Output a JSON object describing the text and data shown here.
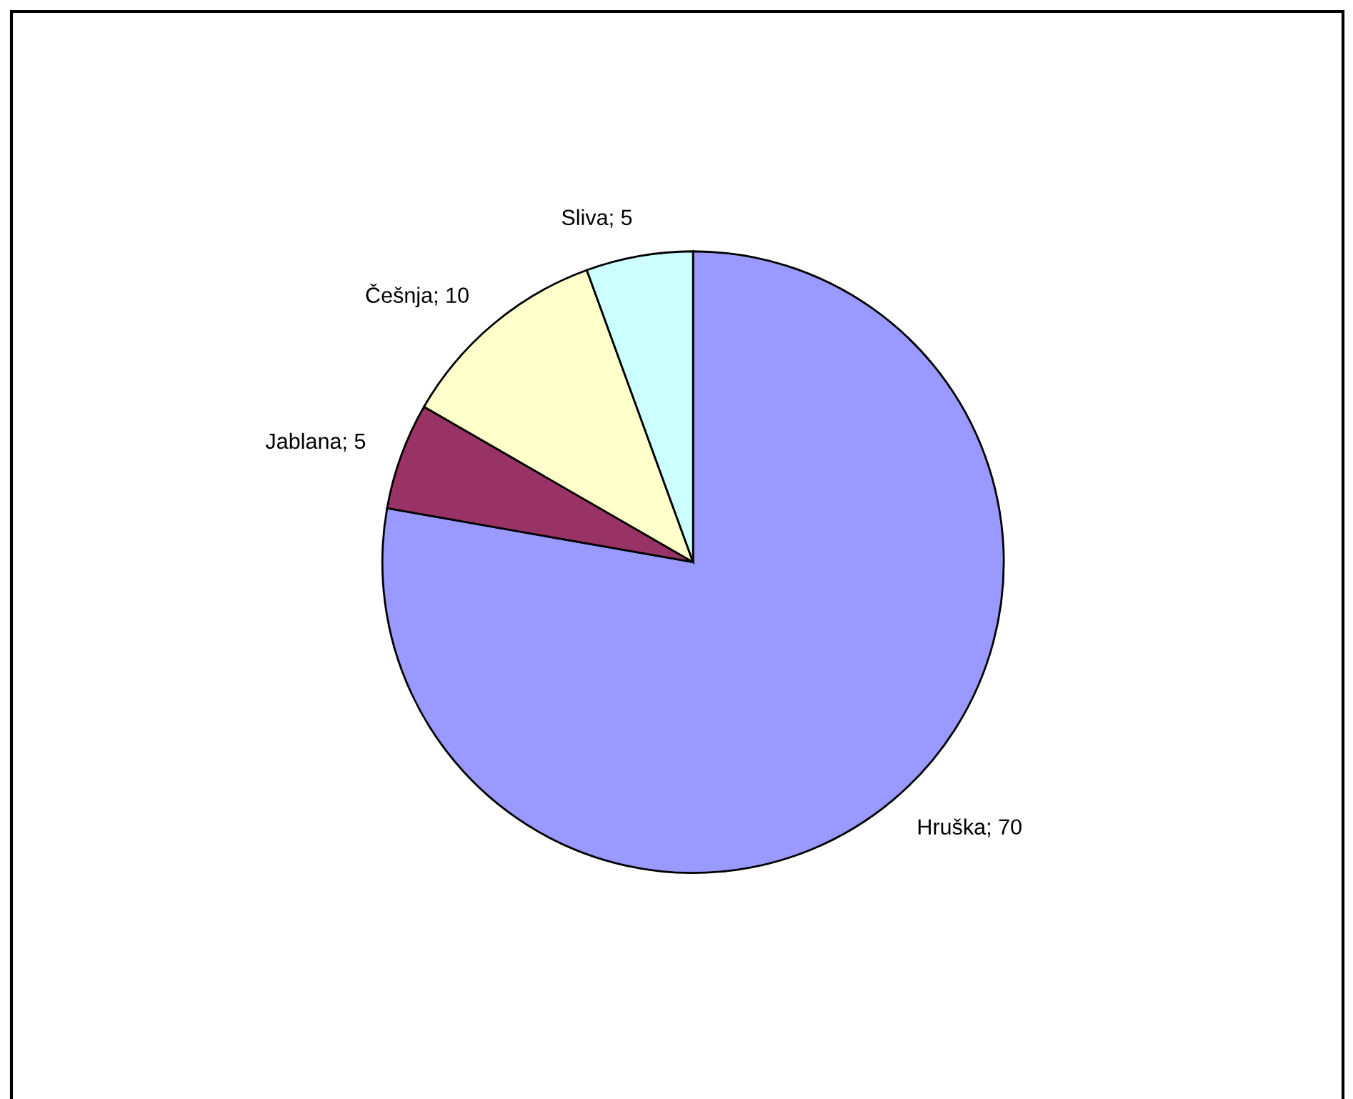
{
  "chart_data": {
    "type": "pie",
    "categories": [
      "Hruška; 70",
      "Jablana; 5",
      "Češnja; 10",
      "Sliva; 5"
    ],
    "values": [
      70,
      5,
      10,
      5
    ],
    "colors": [
      "#9999ff",
      "#993366",
      "#ffffcc",
      "#ccffff"
    ]
  }
}
